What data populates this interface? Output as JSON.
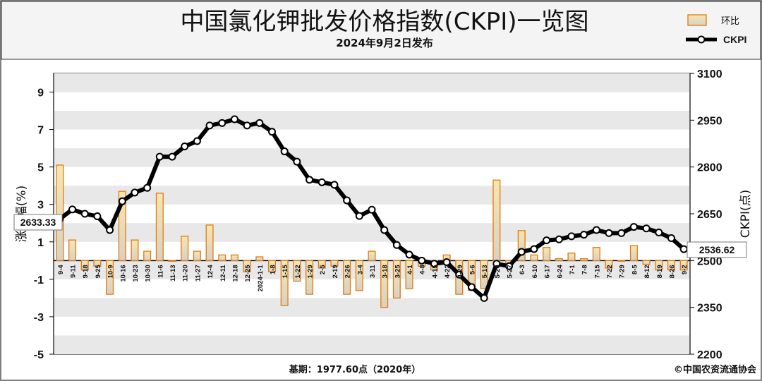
{
  "header": {
    "title": "中国氯化钾批发价格指数(CKPI)一览图",
    "subtitle": "2024年9月2日发布"
  },
  "legend": {
    "bar_label": "环比",
    "line_label": "CKPI"
  },
  "footer": {
    "base": "基期：1977.60点（2020年）",
    "copyright": "©中国农资流通协会"
  },
  "annotations": {
    "start_value": "2633.33",
    "end_value": "2536.62"
  },
  "colors": {
    "bar_fill_top": "#f7e6b0",
    "bar_fill_bottom": "#d9d0c3",
    "bar_stroke": "#e07b10",
    "line": "#000000",
    "band": "#e8e8e8"
  },
  "chart_data": {
    "type": "bar+line",
    "title": "中国氯化钾批发价格指数(CKPI)一览图",
    "categories": [
      "9-4",
      "9-11",
      "9-18",
      "9-25",
      "10-9",
      "10-16",
      "10-23",
      "10-30",
      "11-6",
      "11-13",
      "11-20",
      "11-27",
      "12-4",
      "12-11",
      "12-18",
      "12-25",
      "2024-1-1",
      "1-8",
      "1-15",
      "1-22",
      "1-29",
      "2-5",
      "2-19",
      "2-26",
      "3-4",
      "3-11",
      "3-18",
      "3-25",
      "4-1",
      "4-8",
      "4-15",
      "4-22",
      "4-29",
      "5-6",
      "5-13",
      "5-20",
      "5-27",
      "6-3",
      "6-10",
      "6-17",
      "6-24",
      "7-1",
      "7-8",
      "7-15",
      "7-22",
      "7-29",
      "8-5",
      "8-12",
      "8-19",
      "8-26",
      "9-2"
    ],
    "series": [
      {
        "name": "环比",
        "type": "bar",
        "axis": "left",
        "values": [
          5.1,
          1.1,
          -0.5,
          -0.3,
          -1.8,
          3.7,
          1.1,
          0.5,
          3.6,
          0.0,
          1.3,
          0.5,
          1.9,
          0.3,
          0.3,
          -0.6,
          0.2,
          -0.6,
          -2.4,
          -1.1,
          -1.8,
          -0.4,
          -0.3,
          -1.8,
          -1.6,
          0.5,
          -2.5,
          -2.0,
          -1.5,
          -0.3,
          -0.5,
          0.3,
          -1.8,
          -1.6,
          -1.5,
          4.3,
          -0.2,
          1.6,
          0.3,
          0.7,
          0.1,
          0.4,
          0.1,
          0.7,
          -0.4,
          0.0,
          0.8,
          -0.2,
          -0.5,
          -0.5,
          -0.5
        ]
      },
      {
        "name": "CKPI",
        "type": "line",
        "axis": "right",
        "values": [
          2633.33,
          2664,
          2650,
          2642,
          2598,
          2690,
          2718,
          2733,
          2833,
          2833,
          2866,
          2883,
          2933,
          2941,
          2953,
          2933,
          2941,
          2913,
          2850,
          2817,
          2759,
          2751,
          2743,
          2693,
          2643,
          2663,
          2598,
          2550,
          2519,
          2500,
          2490,
          2495,
          2455,
          2415,
          2380,
          2490,
          2482,
          2528,
          2537,
          2565,
          2568,
          2578,
          2583,
          2598,
          2588,
          2588,
          2608,
          2603,
          2590,
          2572,
          2536.62
        ]
      }
    ],
    "xlabel": "",
    "ylabel": "涨跌幅(%)",
    "y2label": "CKPI(点)",
    "ylim": [
      -5,
      10
    ],
    "y2lim": [
      2200,
      3100
    ],
    "yticks": [
      -5,
      -3,
      -1,
      1,
      3,
      5,
      7,
      9
    ],
    "y2ticks": [
      2200,
      2350,
      2500,
      2650,
      2800,
      2950,
      3100
    ],
    "grid": "alternating horizontal bands"
  }
}
